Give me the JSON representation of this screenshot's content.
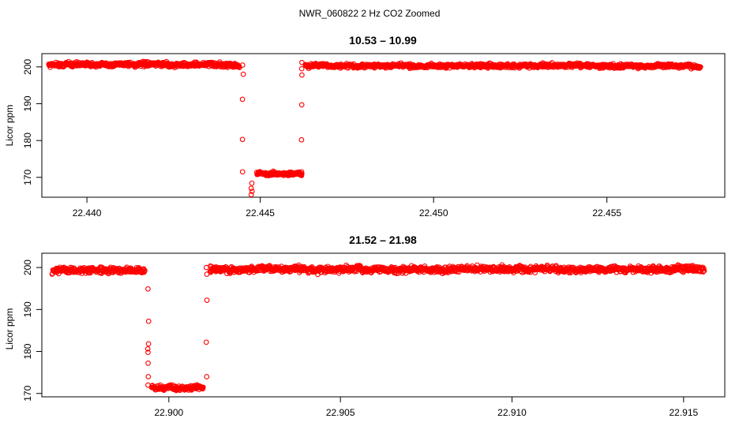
{
  "figure": {
    "suptitle": "NWR_060822  2 Hz CO2 Zoomed"
  },
  "chart_data": [
    {
      "type": "scatter",
      "title": "10.53 – 10.99",
      "xlabel": "",
      "ylabel": "Licor ppm",
      "xlim": [
        22.4387,
        22.4584
      ],
      "ylim": [
        164.6,
        203.6
      ],
      "x_ticks": [
        22.44,
        22.445,
        22.45,
        22.455
      ],
      "x_tick_labels": [
        "22.440",
        "22.445",
        "22.450",
        "22.455"
      ],
      "y_ticks": [
        170,
        180,
        190,
        200
      ],
      "y_tick_labels": [
        "170",
        "180",
        "190",
        "200"
      ],
      "marker_color": "#ff0000",
      "marker": "open-circle",
      "grid": false,
      "segments": [
        {
          "x_start": 22.4389,
          "x_end": 22.4444,
          "y_center": 200.6,
          "y_spread": 1.0
        },
        {
          "x_start": 22.4449,
          "x_end": 22.4462,
          "y_center": 171.0,
          "y_spread": 0.8
        },
        {
          "x_start": 22.4463,
          "x_end": 22.4577,
          "y_center": 200.3,
          "y_spread": 0.9
        }
      ],
      "transitions": [
        {
          "x": 22.4445,
          "y": [
            200.5,
            198.0,
            191.2,
            180.3,
            171.5
          ]
        },
        {
          "x": 22.44475,
          "y": [
            168.4,
            167.0,
            166.2,
            165.3
          ]
        },
        {
          "x": 22.4462,
          "y": [
            171.5,
            180.2,
            189.7,
            197.8,
            199.5,
            201.2
          ]
        }
      ]
    },
    {
      "type": "scatter",
      "title": "21.52 – 21.98",
      "xlabel": "",
      "ylabel": "Licor ppm",
      "xlim": [
        22.8963,
        22.9162
      ],
      "ylim": [
        169.2,
        203.4
      ],
      "x_ticks": [
        22.9,
        22.905,
        22.91,
        22.915
      ],
      "x_tick_labels": [
        "22.900",
        "22.905",
        "22.910",
        "22.915"
      ],
      "y_ticks": [
        170,
        180,
        190,
        200
      ],
      "y_tick_labels": [
        "170",
        "180",
        "190",
        "200"
      ],
      "marker_color": "#ff0000",
      "marker": "open-circle",
      "grid": false,
      "segments": [
        {
          "x_start": 22.8966,
          "x_end": 22.8993,
          "y_center": 199.2,
          "y_spread": 1.2
        },
        {
          "x_start": 22.8995,
          "x_end": 22.901,
          "y_center": 171.4,
          "y_spread": 0.9
        },
        {
          "x_start": 22.9012,
          "x_end": 22.9156,
          "y_center": 199.5,
          "y_spread": 1.2
        }
      ],
      "transitions": [
        {
          "x": 22.8994,
          "y": [
            194.9,
            187.2,
            181.8,
            180.6,
            179.8,
            177.2,
            174.0,
            172.0
          ]
        },
        {
          "x": 22.9011,
          "y": [
            174.0,
            182.2,
            192.2,
            198.4,
            200.0
          ]
        }
      ]
    }
  ]
}
